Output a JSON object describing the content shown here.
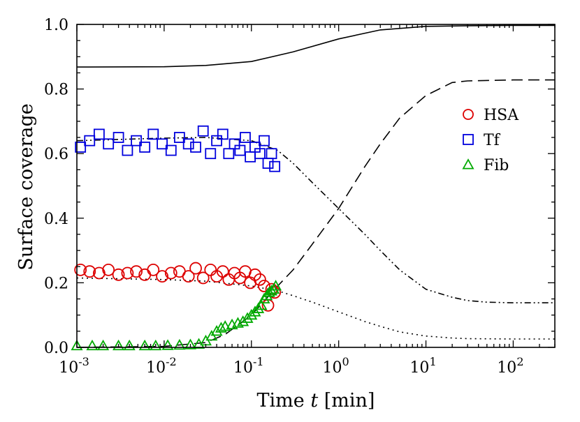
{
  "chart_data": {
    "type": "scatter",
    "title": "",
    "xlabel_prefix": "Time ",
    "xlabel_var": "t",
    "xlabel_suffix": " [min]",
    "ylabel": "Surface coverage",
    "xscale": "log",
    "xlim": [
      0.001,
      300
    ],
    "ylim": [
      0.0,
      1.0
    ],
    "x_ticks": [
      {
        "value": 0.001,
        "base": "10",
        "exp": "-3"
      },
      {
        "value": 0.01,
        "base": "10",
        "exp": "-2"
      },
      {
        "value": 0.1,
        "base": "10",
        "exp": "-1"
      },
      {
        "value": 1,
        "base": "10",
        "exp": "0"
      },
      {
        "value": 10,
        "base": "10",
        "exp": "1"
      },
      {
        "value": 100,
        "base": "10",
        "exp": "2"
      }
    ],
    "y_ticks": [
      {
        "value": 0.0,
        "label": "0.0"
      },
      {
        "value": 0.2,
        "label": "0.2"
      },
      {
        "value": 0.4,
        "label": "0.4"
      },
      {
        "value": 0.6,
        "label": "0.6"
      },
      {
        "value": 0.8,
        "label": "0.8"
      },
      {
        "value": 1.0,
        "label": "1.0"
      }
    ],
    "legend_position": "upper-right",
    "series": [
      {
        "name": "HSA",
        "marker": "circle",
        "color": "#dd0000",
        "x": [
          0.0011,
          0.0014,
          0.0018,
          0.0023,
          0.003,
          0.0038,
          0.0048,
          0.006,
          0.0075,
          0.0095,
          0.012,
          0.015,
          0.019,
          0.023,
          0.028,
          0.034,
          0.04,
          0.047,
          0.055,
          0.064,
          0.074,
          0.085,
          0.097,
          0.11,
          0.125,
          0.14,
          0.155,
          0.17,
          0.185
        ],
        "y": [
          0.24,
          0.235,
          0.23,
          0.24,
          0.225,
          0.23,
          0.235,
          0.225,
          0.24,
          0.22,
          0.23,
          0.235,
          0.22,
          0.245,
          0.215,
          0.24,
          0.22,
          0.235,
          0.21,
          0.23,
          0.215,
          0.235,
          0.2,
          0.225,
          0.21,
          0.19,
          0.13,
          0.18,
          0.17
        ]
      },
      {
        "name": "Tf",
        "marker": "square",
        "color": "#0000dd",
        "x": [
          0.0011,
          0.0014,
          0.0018,
          0.0023,
          0.003,
          0.0038,
          0.0048,
          0.006,
          0.0075,
          0.0095,
          0.012,
          0.015,
          0.019,
          0.023,
          0.028,
          0.034,
          0.04,
          0.047,
          0.055,
          0.064,
          0.074,
          0.085,
          0.097,
          0.11,
          0.125,
          0.14,
          0.155,
          0.17,
          0.185
        ],
        "y": [
          0.62,
          0.64,
          0.66,
          0.63,
          0.65,
          0.61,
          0.64,
          0.62,
          0.66,
          0.63,
          0.61,
          0.65,
          0.63,
          0.62,
          0.67,
          0.6,
          0.64,
          0.66,
          0.6,
          0.63,
          0.61,
          0.65,
          0.59,
          0.62,
          0.6,
          0.64,
          0.57,
          0.6,
          0.56
        ]
      },
      {
        "name": "Fib",
        "marker": "triangle",
        "color": "#00aa00",
        "x": [
          0.001,
          0.0015,
          0.002,
          0.003,
          0.004,
          0.006,
          0.008,
          0.011,
          0.015,
          0.02,
          0.025,
          0.03,
          0.035,
          0.04,
          0.045,
          0.05,
          0.06,
          0.07,
          0.08,
          0.09,
          0.1,
          0.11,
          0.12,
          0.13,
          0.14,
          0.15,
          0.16,
          0.17,
          0.18,
          0.19
        ],
        "y": [
          0.005,
          0.005,
          0.005,
          0.005,
          0.005,
          0.005,
          0.005,
          0.006,
          0.007,
          0.008,
          0.01,
          0.02,
          0.035,
          0.05,
          0.06,
          0.065,
          0.07,
          0.075,
          0.08,
          0.09,
          0.1,
          0.11,
          0.12,
          0.13,
          0.15,
          0.16,
          0.17,
          0.175,
          0.18,
          0.19
        ]
      }
    ],
    "model_curves": [
      {
        "name": "total",
        "style": "solid",
        "x": [
          0.001,
          0.01,
          0.03,
          0.1,
          0.3,
          1,
          3,
          10,
          30,
          100,
          300
        ],
        "y": [
          0.868,
          0.869,
          0.873,
          0.885,
          0.915,
          0.955,
          0.983,
          0.994,
          0.996,
          0.997,
          0.997
        ]
      },
      {
        "name": "Fib model",
        "style": "dashed",
        "x": [
          0.001,
          0.01,
          0.03,
          0.05,
          0.1,
          0.2,
          0.3,
          0.5,
          1,
          2,
          3,
          5,
          10,
          20,
          30,
          100,
          300
        ],
        "y": [
          0.0,
          0.003,
          0.015,
          0.04,
          0.1,
          0.19,
          0.24,
          0.32,
          0.43,
          0.56,
          0.63,
          0.71,
          0.78,
          0.82,
          0.825,
          0.828,
          0.828
        ]
      },
      {
        "name": "Tf model",
        "style": "dashdot",
        "x": [
          0.001,
          0.01,
          0.03,
          0.1,
          0.2,
          0.3,
          0.5,
          1,
          2,
          3,
          5,
          10,
          20,
          30,
          50,
          100,
          300
        ],
        "y": [
          0.64,
          0.648,
          0.65,
          0.64,
          0.61,
          0.57,
          0.51,
          0.43,
          0.35,
          0.3,
          0.24,
          0.18,
          0.155,
          0.145,
          0.14,
          0.138,
          0.138
        ]
      },
      {
        "name": "HSA model",
        "style": "dotted",
        "x": [
          0.001,
          0.01,
          0.03,
          0.1,
          0.2,
          0.3,
          0.5,
          1,
          2,
          3,
          5,
          10,
          20,
          30,
          100,
          300
        ],
        "y": [
          0.215,
          0.21,
          0.205,
          0.19,
          0.175,
          0.16,
          0.14,
          0.11,
          0.08,
          0.065,
          0.048,
          0.035,
          0.029,
          0.027,
          0.026,
          0.026
        ]
      }
    ]
  }
}
